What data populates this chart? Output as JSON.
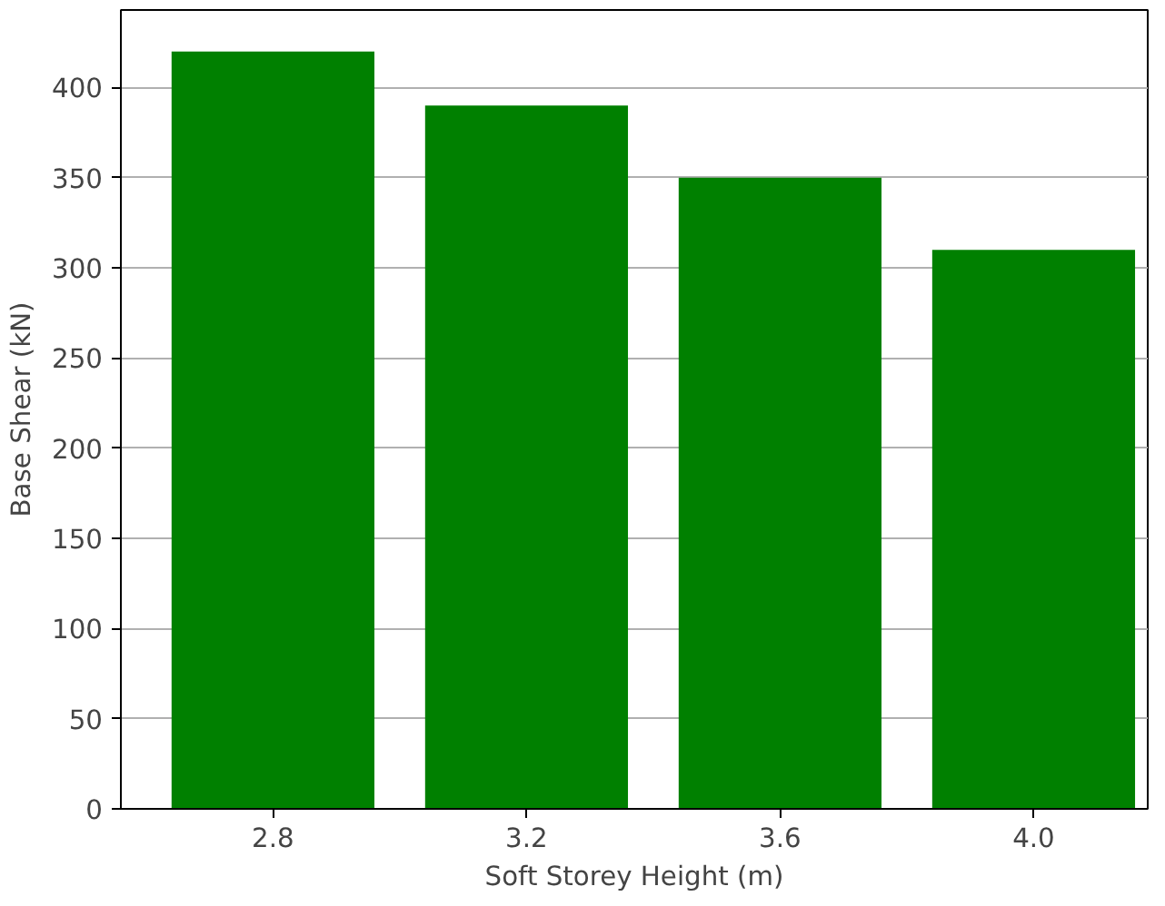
{
  "chart_data": {
    "type": "bar",
    "xlabel": "Soft Storey Height (m)",
    "ylabel": "Base Shear (kN)",
    "categories": [
      "2.8",
      "3.2",
      "3.6",
      "4.0"
    ],
    "values": [
      420,
      390,
      350,
      310
    ],
    "color": "#008000",
    "ylim": [
      0,
      443
    ],
    "yticks": [
      0,
      50,
      100,
      150,
      200,
      250,
      300,
      350,
      400
    ],
    "grid": "y"
  }
}
